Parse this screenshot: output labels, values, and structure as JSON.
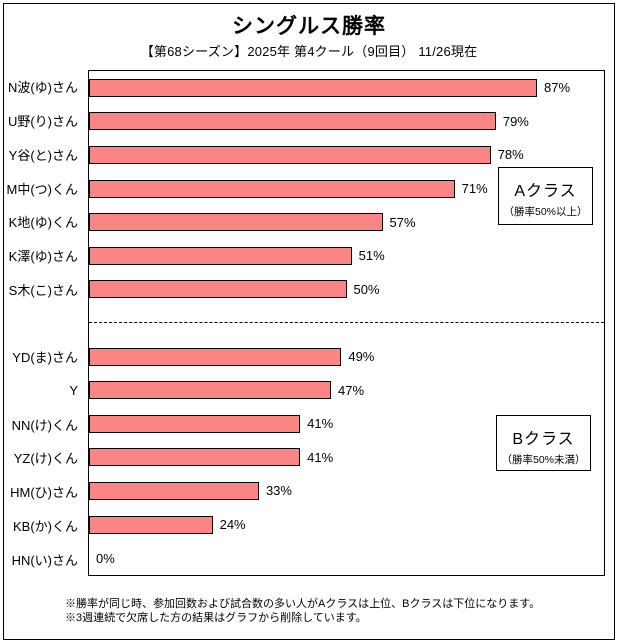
{
  "title": "シングルス勝率",
  "subtitle": "【第68シーズン】2025年 第4クール（9回目） 11/26現在",
  "chart_data": {
    "type": "bar",
    "orientation": "horizontal",
    "title": "シングルス勝率",
    "subtitle": "【第68シーズン】2025年 第4クール（9回目） 11/26現在",
    "xlabel": "",
    "ylabel": "",
    "xlim": [
      0,
      100
    ],
    "grid": false,
    "categories": [
      "N波(ゆ)さん",
      "U野(り)さん",
      "Y谷(と)さん",
      "M中(つ)くん",
      "K地(ゆ)くん",
      "K澤(ゆ)さん",
      "S木(こ)さん",
      "YD(ま)さん",
      "Y",
      "NN(け)くん",
      "YZ(け)くん",
      "HM(ひ)さん",
      "KB(か)くん",
      "HN(い)さん"
    ],
    "values": [
      87,
      79,
      78,
      71,
      57,
      51,
      50,
      49,
      47,
      41,
      41,
      33,
      24,
      0
    ],
    "value_labels": [
      "87%",
      "79%",
      "78%",
      "71%",
      "57%",
      "51%",
      "50%",
      "49%",
      "47%",
      "41%",
      "41%",
      "33%",
      "24%",
      "0%"
    ],
    "separator_after_index": 6,
    "legend_boxes": [
      {
        "label": "Aクラス",
        "sublabel": "（勝率50%以上）"
      },
      {
        "label": "Bクラス",
        "sublabel": "（勝率50%未満）"
      }
    ],
    "colors": {
      "bar_fill": "#FA8585",
      "bar_border": "#000000",
      "text": "#000000",
      "background": "#FFFFFF"
    }
  },
  "footnotes": [
    "※勝率が同じ時、参加回数および試合数の多い人がAクラスは上位、Bクラスは下位になります。",
    "※3週連続で欠席した方の結果はグラフから削除しています。"
  ]
}
